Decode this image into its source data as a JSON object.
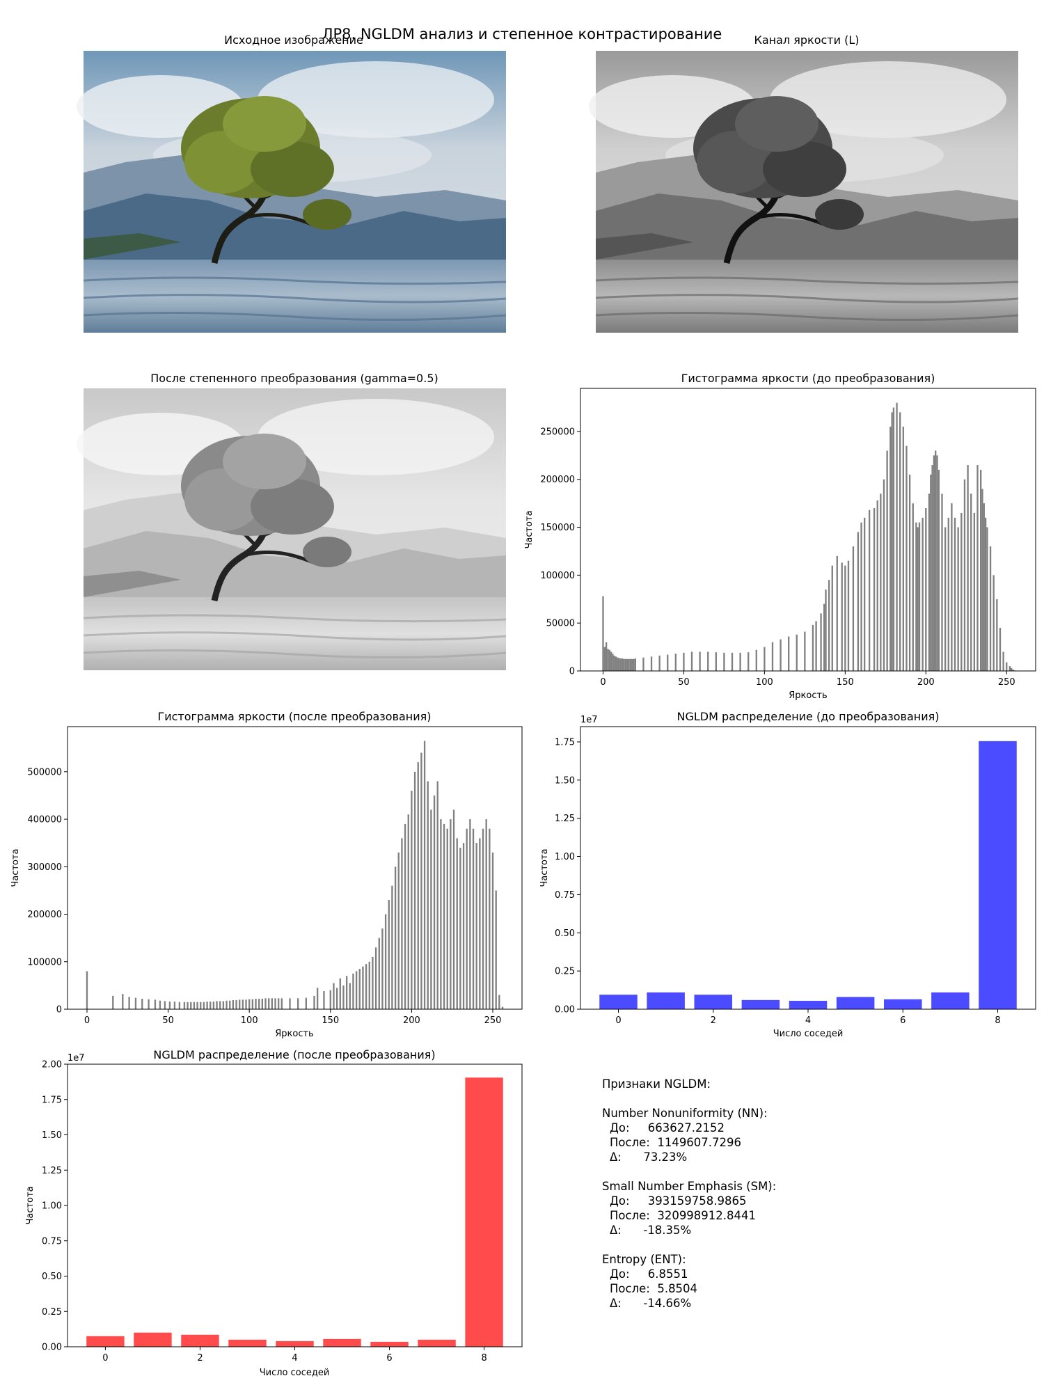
{
  "figure": {
    "suptitle": "ЛР8. NGLDM анализ и степенное контрастирование"
  },
  "images": [
    {
      "title": "Исходное изображение",
      "kind": "color"
    },
    {
      "title": "Канал яркости (L)",
      "kind": "gray"
    },
    {
      "title": "После степенного преобразования (gamma=0.5)",
      "kind": "gamma"
    }
  ],
  "features": {
    "heading": "Признаки NGLDM:",
    "groups": [
      {
        "name": "Number Nonuniformity (NN):",
        "before": "До:     663627.2152",
        "after": "После:  1149607.7296",
        "delta": "Δ:      73.23%"
      },
      {
        "name": "Small Number Emphasis (SM):",
        "before": "До:     393159758.9865",
        "after": "После:  320998912.8441",
        "delta": "Δ:      -18.35%"
      },
      {
        "name": "Entropy (ENT):",
        "before": "До:     6.8551",
        "after": "После:  5.8504",
        "delta": "Δ:      -14.66%"
      }
    ]
  },
  "chart_data": [
    {
      "id": "hist_before",
      "type": "bar",
      "title": "Гистограмма яркости (до преобразования)",
      "xlabel": "Яркость",
      "ylabel": "Частота",
      "xlim": [
        -14,
        268
      ],
      "ylim": [
        0,
        295000
      ],
      "xticks": [
        0,
        50,
        100,
        150,
        200,
        250
      ],
      "yticks": [
        0,
        50000,
        100000,
        150000,
        200000,
        250000
      ],
      "color": "#808080",
      "x": [
        0,
        1,
        2,
        3,
        4,
        5,
        6,
        7,
        8,
        9,
        10,
        11,
        12,
        13,
        14,
        15,
        16,
        17,
        18,
        19,
        20,
        25,
        30,
        35,
        40,
        45,
        50,
        55,
        60,
        65,
        70,
        75,
        80,
        85,
        90,
        95,
        100,
        105,
        110,
        115,
        120,
        125,
        130,
        132,
        135,
        137,
        138,
        140,
        142,
        145,
        148,
        150,
        152,
        155,
        158,
        160,
        162,
        165,
        168,
        170,
        172,
        174,
        176,
        178,
        179,
        180,
        182,
        184,
        186,
        188,
        190,
        192,
        194,
        195,
        196,
        198,
        200,
        202,
        203,
        204,
        205,
        206,
        207,
        208,
        210,
        212,
        214,
        216,
        218,
        220,
        222,
        224,
        226,
        228,
        230,
        232,
        234,
        235,
        236,
        237,
        238,
        240,
        242,
        244,
        246,
        248,
        250,
        252,
        253,
        254,
        255
      ],
      "values": [
        78000,
        25000,
        30000,
        23000,
        22000,
        20000,
        18000,
        16000,
        15000,
        14000,
        13500,
        13000,
        13000,
        12500,
        12500,
        12500,
        12500,
        12500,
        12500,
        12500,
        13000,
        14000,
        15000,
        16000,
        17000,
        18000,
        19000,
        20000,
        20000,
        20000,
        19500,
        19000,
        19000,
        19000,
        19500,
        22000,
        25000,
        30000,
        33000,
        36000,
        38000,
        41000,
        48000,
        52000,
        60000,
        70000,
        85000,
        95000,
        110000,
        120000,
        113000,
        110000,
        115000,
        130000,
        145000,
        155000,
        160000,
        168000,
        170000,
        178000,
        185000,
        200000,
        230000,
        255000,
        270000,
        275000,
        280000,
        270000,
        255000,
        235000,
        205000,
        175000,
        155000,
        150000,
        155000,
        160000,
        170000,
        185000,
        205000,
        215000,
        225000,
        230000,
        225000,
        210000,
        185000,
        150000,
        160000,
        175000,
        160000,
        150000,
        165000,
        200000,
        215000,
        185000,
        165000,
        215000,
        210000,
        190000,
        175000,
        160000,
        150000,
        130000,
        100000,
        75000,
        45000,
        20000,
        9000,
        5000,
        3000,
        1500,
        500
      ]
    },
    {
      "id": "hist_after",
      "type": "bar",
      "title": "Гистограмма яркости (после преобразования)",
      "xlabel": "Яркость",
      "ylabel": "Частота",
      "xlim": [
        -12,
        268
      ],
      "ylim": [
        0,
        595000
      ],
      "xticks": [
        0,
        50,
        100,
        150,
        200,
        250
      ],
      "yticks": [
        0,
        100000,
        200000,
        300000,
        400000,
        500000
      ],
      "color": "#808080",
      "x": [
        0,
        16,
        22,
        26,
        30,
        34,
        38,
        42,
        45,
        48,
        51,
        54,
        57,
        60,
        62,
        64,
        66,
        68,
        70,
        72,
        74,
        76,
        78,
        80,
        82,
        84,
        86,
        88,
        90,
        92,
        94,
        96,
        98,
        100,
        102,
        104,
        106,
        108,
        110,
        112,
        114,
        116,
        118,
        120,
        125,
        130,
        135,
        140,
        142,
        146,
        150,
        152,
        154,
        156,
        158,
        160,
        162,
        164,
        166,
        168,
        170,
        172,
        174,
        176,
        178,
        180,
        182,
        184,
        186,
        188,
        190,
        192,
        194,
        196,
        198,
        200,
        202,
        204,
        206,
        208,
        210,
        212,
        214,
        216,
        218,
        220,
        222,
        224,
        226,
        228,
        230,
        232,
        234,
        236,
        238,
        240,
        242,
        244,
        246,
        248,
        250,
        252,
        254,
        256
      ],
      "values": [
        80000,
        28000,
        32000,
        26000,
        24000,
        22000,
        21000,
        20000,
        18000,
        17000,
        16000,
        16000,
        15000,
        15000,
        15000,
        15000,
        15000,
        15000,
        15000,
        15000,
        16000,
        16000,
        16000,
        17000,
        17000,
        17000,
        18000,
        18000,
        19000,
        19000,
        20000,
        20000,
        20000,
        21000,
        21000,
        22000,
        22000,
        22000,
        23000,
        23000,
        23000,
        23000,
        23000,
        23000,
        23000,
        23000,
        24000,
        28000,
        45000,
        38000,
        40000,
        55000,
        45000,
        65000,
        50000,
        70000,
        55000,
        75000,
        80000,
        85000,
        90000,
        95000,
        100000,
        110000,
        130000,
        150000,
        170000,
        200000,
        230000,
        260000,
        300000,
        330000,
        360000,
        390000,
        410000,
        460000,
        500000,
        520000,
        540000,
        565000,
        480000,
        420000,
        450000,
        480000,
        400000,
        390000,
        380000,
        400000,
        420000,
        360000,
        340000,
        350000,
        380000,
        400000,
        380000,
        350000,
        360000,
        380000,
        400000,
        380000,
        330000,
        250000,
        30000,
        5000
      ]
    },
    {
      "id": "ngldm_before",
      "type": "bar",
      "title": "NGLDM распределение (до преобразования)",
      "xlabel": "Число соседей",
      "ylabel": "Частота",
      "scale_note": "1e7",
      "xlim": [
        -0.8,
        8.8
      ],
      "ylim": [
        0,
        18500000
      ],
      "xticks": [
        0,
        2,
        4,
        6,
        8
      ],
      "yticks": [
        0,
        2500000,
        5000000,
        7500000,
        10000000,
        12500000,
        15000000,
        17500000
      ],
      "ytick_labels": [
        "0.00",
        "0.25",
        "0.50",
        "0.75",
        "1.00",
        "1.25",
        "1.50",
        "1.75"
      ],
      "color": "#4b4bff",
      "x": [
        0,
        1,
        2,
        3,
        4,
        5,
        6,
        7,
        8
      ],
      "values": [
        950000,
        1100000,
        950000,
        600000,
        550000,
        800000,
        650000,
        1100000,
        17550000
      ]
    },
    {
      "id": "ngldm_after",
      "type": "bar",
      "title": "NGLDM распределение (после преобразования)",
      "xlabel": "Число соседей",
      "ylabel": "Частота",
      "scale_note": "1e7",
      "xlim": [
        -0.8,
        8.8
      ],
      "ylim": [
        0,
        20000000
      ],
      "xticks": [
        0,
        2,
        4,
        6,
        8
      ],
      "yticks": [
        0,
        2500000,
        5000000,
        7500000,
        10000000,
        12500000,
        15000000,
        17500000,
        20000000
      ],
      "ytick_labels": [
        "0.00",
        "0.25",
        "0.50",
        "0.75",
        "1.00",
        "1.25",
        "1.50",
        "1.75",
        "2.00"
      ],
      "color": "#ff4b4b",
      "x": [
        0,
        1,
        2,
        3,
        4,
        5,
        6,
        7,
        8
      ],
      "values": [
        750000,
        1000000,
        850000,
        500000,
        400000,
        550000,
        350000,
        500000,
        19050000
      ]
    }
  ]
}
